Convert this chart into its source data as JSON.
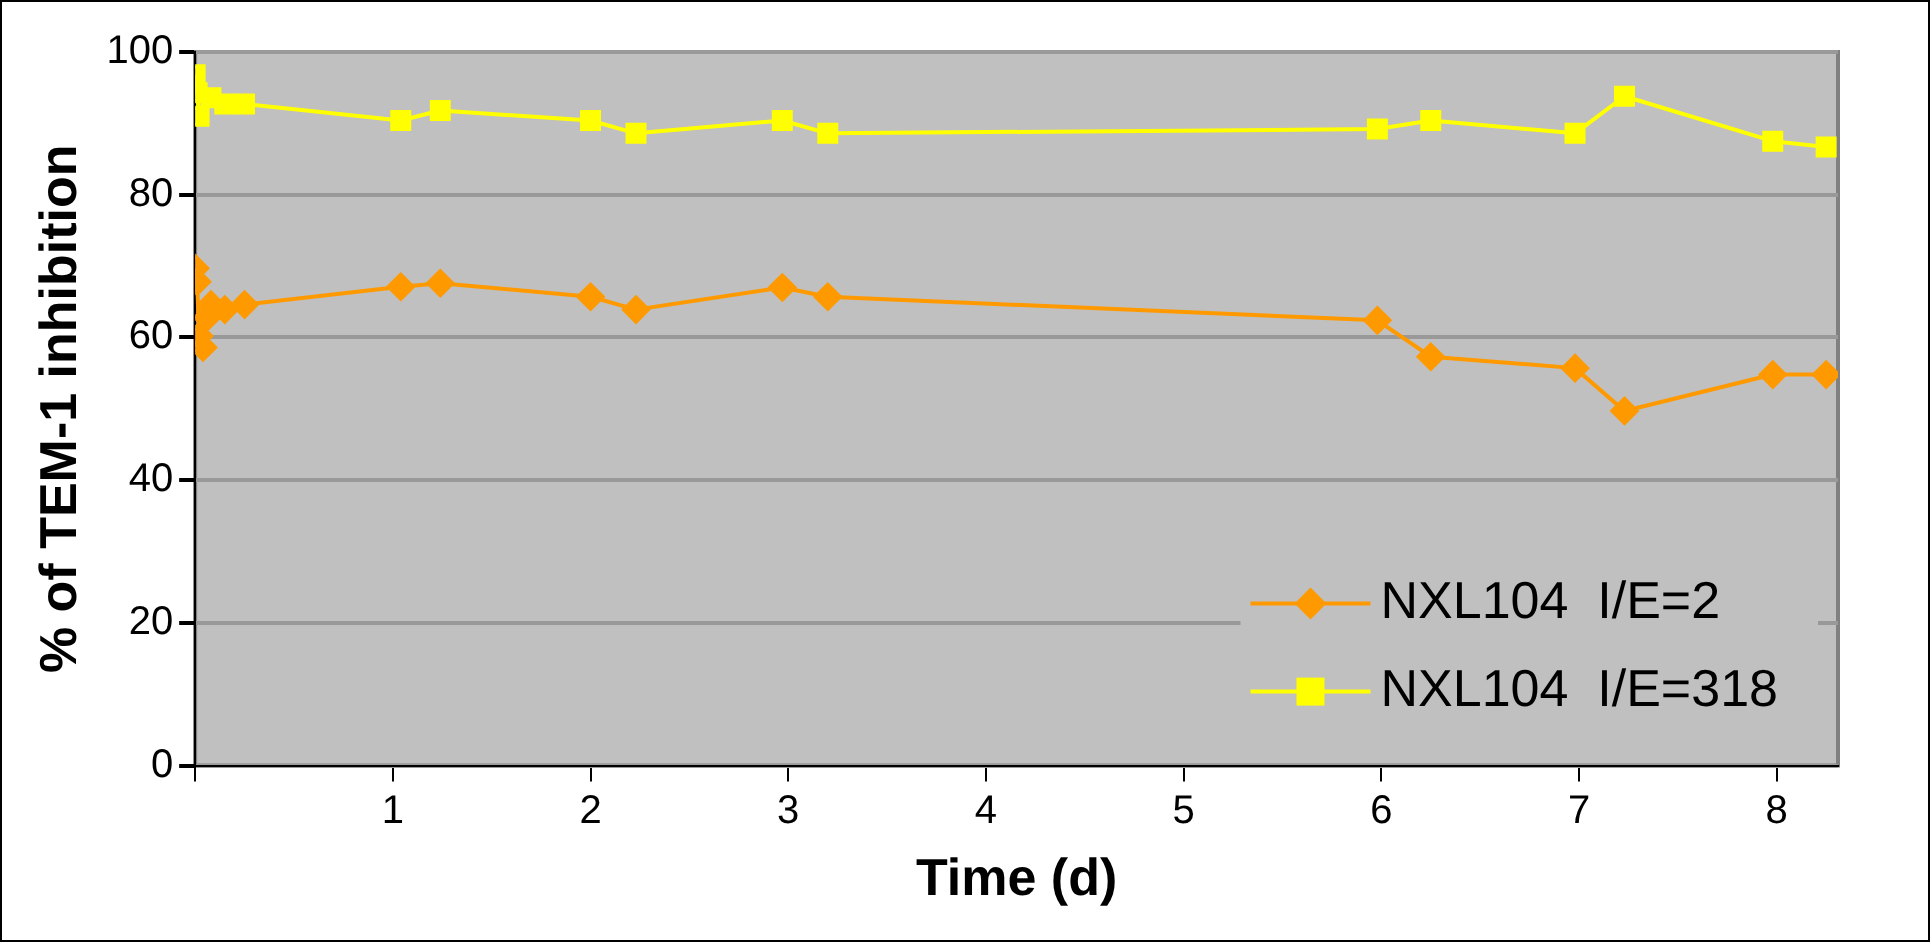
{
  "chart_data": {
    "type": "line",
    "xlabel": "Time (d)",
    "ylabel": "% of TEM-1 inhibition",
    "xlim": [
      0,
      8.31
    ],
    "xticks": [
      {
        "value": 0,
        "label": null
      },
      1,
      2,
      3,
      4,
      5,
      6,
      7,
      8
    ],
    "ylim": [
      0,
      100
    ],
    "yticks": [
      0,
      20,
      40,
      60,
      80,
      100
    ],
    "grid": "y",
    "legend": "bottom right",
    "series": [
      {
        "name": "NXL104  I/E=2",
        "color": "#ff9900",
        "marker": "diamond",
        "x": [
          0,
          0.01,
          0.02,
          0.04,
          0.06,
          0.08,
          0.15,
          0.25,
          1.04,
          1.24,
          2,
          2.23,
          2.97,
          3.2,
          5.98,
          6.25,
          6.98,
          7.23,
          7.98,
          8.25
        ],
        "values": [
          69.7,
          67.8,
          60.2,
          58.6,
          62.8,
          64.6,
          63.9,
          64.6,
          67.1,
          67.6,
          65.7,
          63.9,
          67,
          65.7,
          62.4,
          57.3,
          55.7,
          49.7,
          54.8,
          54.8
        ]
      },
      {
        "name": "NXL104  I/E=318",
        "color": "#ffff00",
        "marker": "square",
        "x": [
          0,
          0.01,
          0.02,
          0.08,
          0.15,
          0.25,
          1.04,
          1.24,
          2,
          2.23,
          2.97,
          3.2,
          5.98,
          6.25,
          6.98,
          7.23,
          7.98,
          8.25
        ],
        "values": [
          96.8,
          94.3,
          91,
          93.6,
          92.7,
          92.7,
          90.4,
          91.8,
          90.4,
          88.6,
          90.4,
          88.6,
          89.2,
          90.4,
          88.6,
          93.8,
          87.5,
          86.7
        ]
      }
    ]
  }
}
